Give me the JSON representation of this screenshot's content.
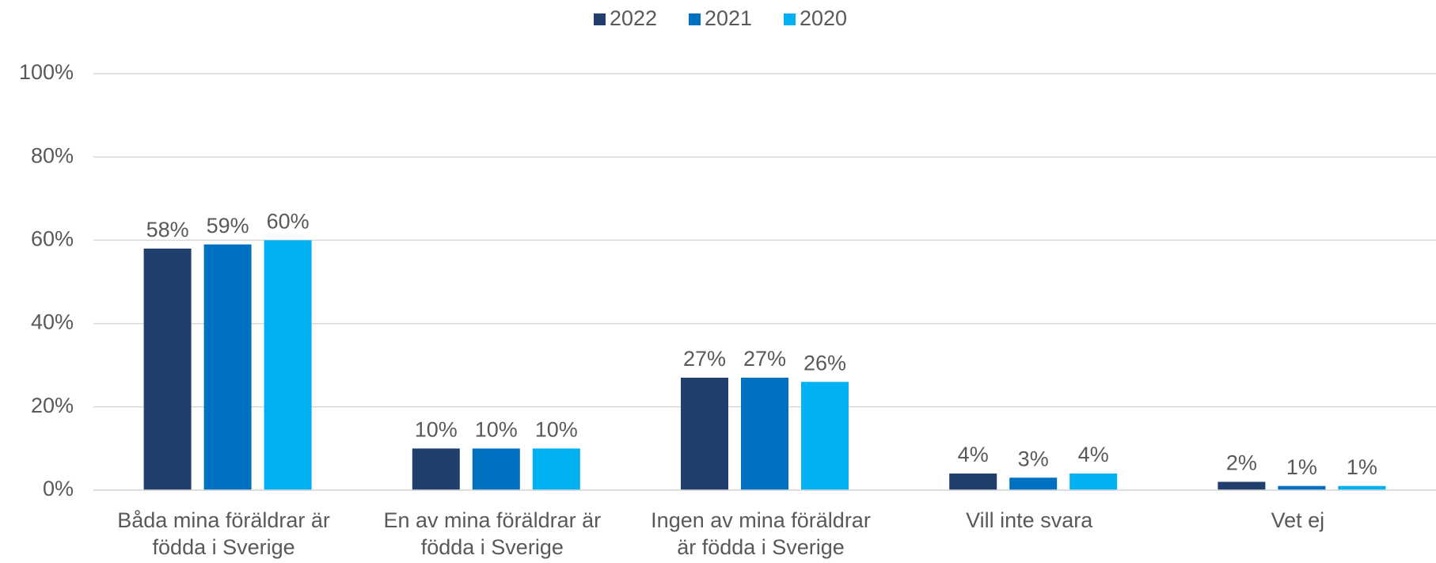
{
  "chart_data": {
    "type": "bar",
    "categories": [
      "Båda mina föräldrar är födda i Sverige",
      "En av mina föräldrar är födda i Sverige",
      "Ingen av mina föräldrar är födda i Sverige",
      "Vill inte svara",
      "Vet ej"
    ],
    "series": [
      {
        "name": "2022",
        "color": "#203f6d",
        "values": [
          58,
          10,
          27,
          4,
          2
        ],
        "value_labels": [
          "58%",
          "10%",
          "27%",
          "4%",
          "2%"
        ]
      },
      {
        "name": "2021",
        "color": "#0070c0",
        "values": [
          59,
          10,
          27,
          3,
          1
        ],
        "value_labels": [
          "59%",
          "10%",
          "27%",
          "3%",
          "1%"
        ]
      },
      {
        "name": "2020",
        "color": "#00b0f0",
        "values": [
          60,
          10,
          26,
          4,
          1
        ],
        "value_labels": [
          "60%",
          "10%",
          "26%",
          "4%",
          "1%"
        ]
      }
    ],
    "ylim": [
      0,
      100
    ],
    "yticks": [
      {
        "value": 0,
        "label": "0%"
      },
      {
        "value": 20,
        "label": "20%"
      },
      {
        "value": 40,
        "label": "40%"
      },
      {
        "value": 60,
        "label": "60%"
      },
      {
        "value": 80,
        "label": "80%"
      },
      {
        "value": 100,
        "label": "100%"
      }
    ],
    "grid": true,
    "legend": "top"
  }
}
